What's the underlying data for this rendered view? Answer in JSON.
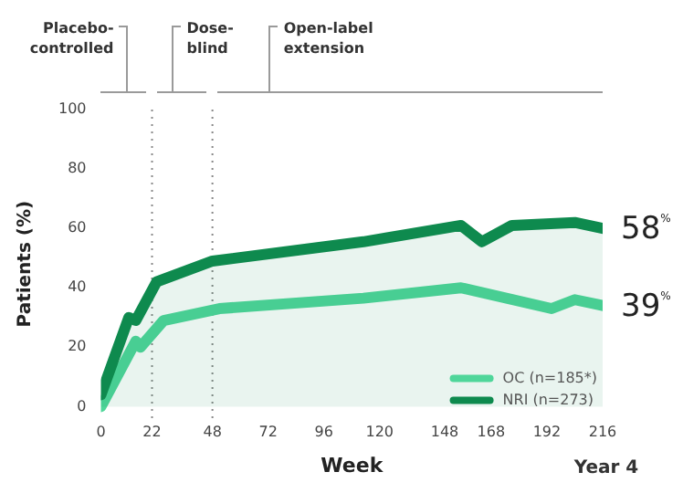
{
  "chart_data": {
    "type": "line",
    "xlabel": "Week",
    "ylabel": "Patients (%)",
    "xlim": [
      0,
      216
    ],
    "ylim": [
      -4,
      100
    ],
    "xticks": [
      0,
      22,
      48,
      72,
      96,
      120,
      148,
      168,
      192,
      216
    ],
    "yticks": [
      0,
      20,
      40,
      60,
      80,
      100
    ],
    "series": [
      {
        "name": "OC (n=185*)",
        "color": "#4fd69a",
        "x": [
          0,
          15,
          17,
          27,
          51,
          113,
          155,
          194,
          204,
          216
        ],
        "values": [
          0,
          22,
          20,
          29,
          33,
          36.5,
          40,
          33,
          36,
          34
        ]
      },
      {
        "name": "NRI (n=273)",
        "color": "#0e8a4e",
        "type": "area",
        "x": [
          0,
          12,
          15,
          24,
          48,
          113,
          155,
          164,
          177,
          204,
          216
        ],
        "values": [
          4,
          30,
          29,
          42,
          49,
          55.5,
          61,
          55.5,
          61,
          62,
          60
        ]
      }
    ],
    "ref_lines": [
      {
        "axis": "x",
        "value": 22,
        "label": null,
        "line_style": "dotted",
        "color": "#888888"
      },
      {
        "axis": "x",
        "value": 48,
        "label": null,
        "line_style": "dotted",
        "color": "#888888"
      }
    ],
    "annotations": [
      "Placebo-controlled",
      "Dose-blind",
      "Open-label extension",
      "Year 4",
      {
        "text": "58$^{%}$",
        "x": 216,
        "y": 60
      },
      {
        "text": "39$^{%}$",
        "x": 216,
        "y": 34
      }
    ],
    "legend": "bottom right",
    "grid": false,
    "marker": "none",
    "line_style": "solid"
  }
}
